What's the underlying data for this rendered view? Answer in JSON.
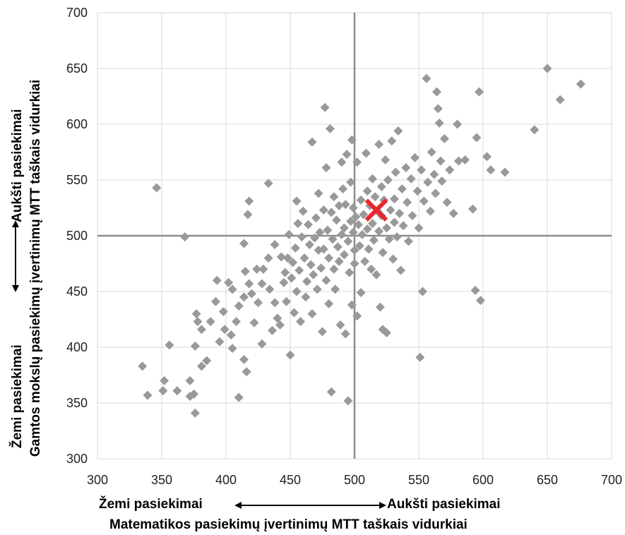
{
  "chart_data": {
    "type": "scatter",
    "title": "",
    "xlabel_low": "Žemi pasiekimai",
    "xlabel_high": "Aukšti pasiekimai",
    "xlabel": "Matematikos pasiekimų įvertinimų MTT taškais vidurkiai",
    "ylabel_low": "Žemi pasiekimai",
    "ylabel_high": "Aukšti pasiekimai",
    "ylabel": "Gamtos mokslų pasiekimų įvertinimų MTT taškais vidurkiai",
    "xlim": [
      300,
      700
    ],
    "ylim": [
      300,
      700
    ],
    "xticks": [
      300,
      350,
      400,
      450,
      500,
      550,
      600,
      650,
      700
    ],
    "yticks": [
      300,
      350,
      400,
      450,
      500,
      550,
      600,
      650,
      700
    ],
    "grid": true,
    "reference_lines": {
      "x": 500,
      "y": 500
    },
    "series": [
      {
        "marker": "diamond",
        "color": "#999999",
        "points": [
          [
            335,
            383
          ],
          [
            339,
            357
          ],
          [
            352,
            370
          ],
          [
            351,
            361
          ],
          [
            356,
            402
          ],
          [
            362,
            361
          ],
          [
            346,
            543
          ],
          [
            368,
            499
          ],
          [
            372,
            370
          ],
          [
            375,
            358
          ],
          [
            372,
            356
          ],
          [
            376,
            341
          ],
          [
            377,
            430
          ],
          [
            376,
            401
          ],
          [
            378,
            423
          ],
          [
            381,
            416
          ],
          [
            381,
            383
          ],
          [
            385,
            388
          ],
          [
            388,
            423
          ],
          [
            392,
            441
          ],
          [
            393,
            460
          ],
          [
            395,
            405
          ],
          [
            399,
            416
          ],
          [
            398,
            432
          ],
          [
            402,
            458
          ],
          [
            404,
            411
          ],
          [
            405,
            399
          ],
          [
            410,
            355
          ],
          [
            405,
            452
          ],
          [
            410,
            437
          ],
          [
            408,
            423
          ],
          [
            414,
            493
          ],
          [
            415,
            468
          ],
          [
            414,
            389
          ],
          [
            416,
            378
          ],
          [
            414,
            445
          ],
          [
            417,
            519
          ],
          [
            418,
            531
          ],
          [
            418,
            457
          ],
          [
            420,
            448
          ],
          [
            422,
            422
          ],
          [
            424,
            470
          ],
          [
            425,
            440
          ],
          [
            428,
            403
          ],
          [
            428,
            457
          ],
          [
            429,
            470
          ],
          [
            433,
            547
          ],
          [
            433,
            480
          ],
          [
            434,
            452
          ],
          [
            436,
            415
          ],
          [
            438,
            440
          ],
          [
            438,
            492
          ],
          [
            440,
            426
          ],
          [
            442,
            420
          ],
          [
            443,
            481
          ],
          [
            445,
            458
          ],
          [
            446,
            467
          ],
          [
            447,
            441
          ],
          [
            448,
            480
          ],
          [
            449,
            501
          ],
          [
            450,
            393
          ],
          [
            451,
            462
          ],
          [
            452,
            476
          ],
          [
            453,
            431
          ],
          [
            454,
            489
          ],
          [
            455,
            531
          ],
          [
            455,
            450
          ],
          [
            456,
            511
          ],
          [
            457,
            469
          ],
          [
            458,
            423
          ],
          [
            459,
            499
          ],
          [
            460,
            522
          ],
          [
            461,
            480
          ],
          [
            462,
            445
          ],
          [
            463,
            459
          ],
          [
            464,
            510
          ],
          [
            465,
            492
          ],
          [
            466,
            474
          ],
          [
            467,
            584
          ],
          [
            467,
            430
          ],
          [
            468,
            465
          ],
          [
            469,
            498
          ],
          [
            470,
            516
          ],
          [
            471,
            452
          ],
          [
            472,
            487
          ],
          [
            472,
            538
          ],
          [
            473,
            503
          ],
          [
            474,
            471
          ],
          [
            475,
            414
          ],
          [
            476,
            523
          ],
          [
            476,
            488
          ],
          [
            477,
            615
          ],
          [
            478,
            460
          ],
          [
            478,
            561
          ],
          [
            479,
            505
          ],
          [
            480,
            439
          ],
          [
            480,
            480
          ],
          [
            481,
            596
          ],
          [
            482,
            360
          ],
          [
            482,
            521
          ],
          [
            483,
            497
          ],
          [
            484,
            470
          ],
          [
            484,
            535
          ],
          [
            485,
            452
          ],
          [
            486,
            514
          ],
          [
            487,
            490
          ],
          [
            488,
            477
          ],
          [
            488,
            527
          ],
          [
            489,
            420
          ],
          [
            490,
            501
          ],
          [
            490,
            566
          ],
          [
            491,
            542
          ],
          [
            492,
            483
          ],
          [
            492,
            507
          ],
          [
            493,
            412
          ],
          [
            493,
            528
          ],
          [
            494,
            573
          ],
          [
            495,
            495
          ],
          [
            495,
            352
          ],
          [
            496,
            467
          ],
          [
            497,
            513
          ],
          [
            497,
            548
          ],
          [
            498,
            438
          ],
          [
            498,
            586
          ],
          [
            499,
            503
          ],
          [
            499,
            525
          ],
          [
            500,
            487
          ],
          [
            500,
            475
          ],
          [
            501,
            517
          ],
          [
            502,
            428
          ],
          [
            502,
            566
          ],
          [
            503,
            510
          ],
          [
            504,
            491
          ],
          [
            505,
            532
          ],
          [
            505,
            449
          ],
          [
            506,
            501
          ],
          [
            507,
            519
          ],
          [
            508,
            477
          ],
          [
            509,
            574
          ],
          [
            510,
            506
          ],
          [
            510,
            540
          ],
          [
            511,
            488
          ],
          [
            512,
            527
          ],
          [
            513,
            470
          ],
          [
            514,
            551
          ],
          [
            514,
            511
          ],
          [
            515,
            496
          ],
          [
            516,
            535
          ],
          [
            517,
            465
          ],
          [
            518,
            522
          ],
          [
            519,
            582
          ],
          [
            519,
            504
          ],
          [
            520,
            436
          ],
          [
            521,
            544
          ],
          [
            521,
            518
          ],
          [
            522,
            485
          ],
          [
            522,
            416
          ],
          [
            523,
            532
          ],
          [
            524,
            568
          ],
          [
            525,
            507
          ],
          [
            525,
            413
          ],
          [
            526,
            550
          ],
          [
            527,
            497
          ],
          [
            528,
            523
          ],
          [
            529,
            585
          ],
          [
            530,
            479
          ],
          [
            531,
            533
          ],
          [
            531,
            512
          ],
          [
            532,
            557
          ],
          [
            533,
            499
          ],
          [
            534,
            594
          ],
          [
            535,
            520
          ],
          [
            536,
            469
          ],
          [
            537,
            542
          ],
          [
            538,
            509
          ],
          [
            540,
            561
          ],
          [
            541,
            530
          ],
          [
            542,
            495
          ],
          [
            544,
            551
          ],
          [
            545,
            518
          ],
          [
            547,
            570
          ],
          [
            549,
            540
          ],
          [
            550,
            507
          ],
          [
            551,
            391
          ],
          [
            552,
            559
          ],
          [
            553,
            450
          ],
          [
            554,
            531
          ],
          [
            556,
            641
          ],
          [
            557,
            548
          ],
          [
            559,
            522
          ],
          [
            560,
            575
          ],
          [
            562,
            555
          ],
          [
            563,
            538
          ],
          [
            564,
            629
          ],
          [
            565,
            614
          ],
          [
            566,
            601
          ],
          [
            567,
            567
          ],
          [
            568,
            549
          ],
          [
            570,
            587
          ],
          [
            572,
            530
          ],
          [
            574,
            559
          ],
          [
            577,
            520
          ],
          [
            580,
            600
          ],
          [
            581,
            567
          ],
          [
            586,
            568
          ],
          [
            592,
            524
          ],
          [
            594,
            451
          ],
          [
            595,
            588
          ],
          [
            597,
            629
          ],
          [
            598,
            442
          ],
          [
            603,
            571
          ],
          [
            606,
            559
          ],
          [
            617,
            557
          ],
          [
            640,
            595
          ],
          [
            650,
            650
          ],
          [
            660,
            622
          ],
          [
            676,
            636
          ]
        ]
      }
    ],
    "highlight": {
      "x": 517,
      "y": 523,
      "marker": "x",
      "color": "#e8262d"
    }
  }
}
